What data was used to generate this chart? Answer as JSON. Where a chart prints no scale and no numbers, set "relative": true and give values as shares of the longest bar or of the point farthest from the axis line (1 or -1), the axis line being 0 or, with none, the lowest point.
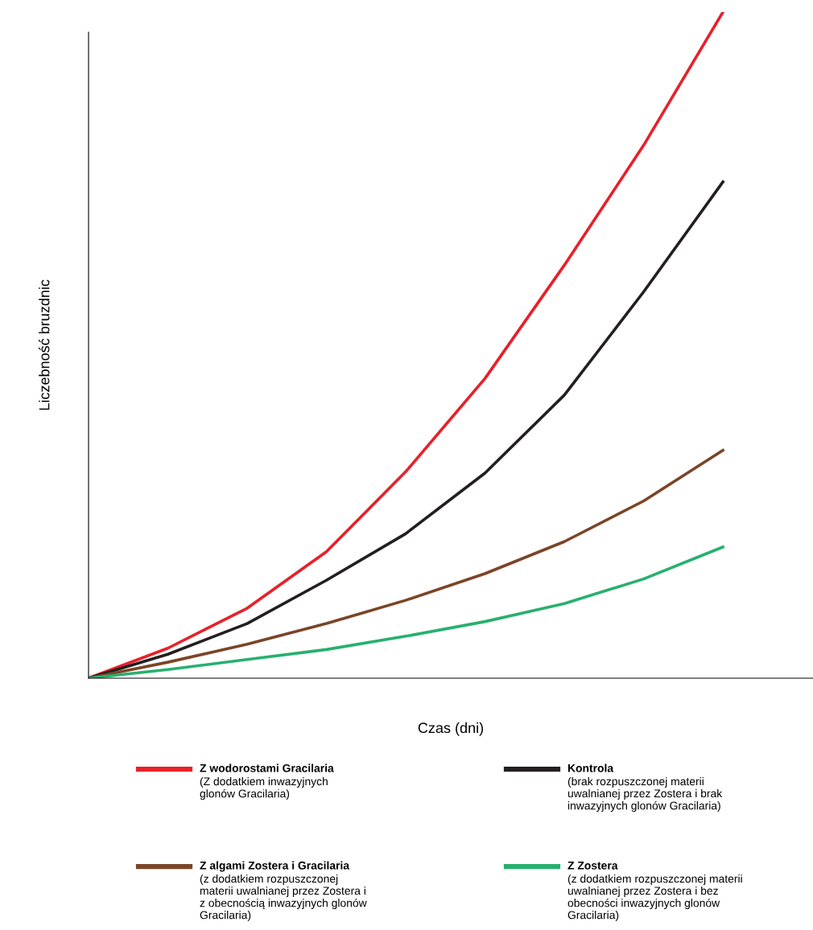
{
  "chart_data": {
    "type": "line",
    "relative": true,
    "xlabel": "Czas (dni)",
    "ylabel": "Liczebność bruzdnic",
    "categories": [
      null,
      null,
      null,
      null,
      null,
      null,
      null,
      null,
      null
    ],
    "series": [
      {
        "name": "Z wodorostami Gracilaria",
        "color": "#e8202a",
        "values": [
          0,
          0.045,
          0.105,
          0.19,
          0.31,
          0.45,
          0.62,
          0.8,
          1
        ]
      },
      {
        "name": "Kontrola",
        "color": "#231f20",
        "values": [
          0,
          0.036,
          0.082,
          0.147,
          0.217,
          0.308,
          0.425,
          0.58,
          0.745
        ]
      },
      {
        "name": "Z algami Zostera i Gracilaria",
        "color": "#7b4527",
        "values": [
          0,
          0.024,
          0.051,
          0.082,
          0.117,
          0.157,
          0.205,
          0.266,
          0.342
        ]
      },
      {
        "name": "Z Zostera",
        "color": "#27b06e",
        "values": [
          0,
          0.013,
          0.028,
          0.043,
          0.063,
          0.085,
          0.112,
          0.149,
          0.197
        ]
      }
    ],
    "annotations": [
      "(Z dodatkiem inwazyjnych\nglonów Gracilaria)",
      "(brak rozpuszczonej materii\nuwalnianej przez Zostera i brak\ninwazyjnych glonów Gracilaria)",
      "(z dodatkiem rozpuszczonej\nmaterii uwalnianej przez Zostera i\nz obecnością inwazyjnych glonów\nGracilaria)",
      "(z dodatkiem rozpuszczonej materii\nuwalnianej przez Zostera i bez\nobecności inwazyjnych glonów\nGracilaria)"
    ],
    "legend": "bottom",
    "grid": false,
    "marker": "none",
    "line_style": "solid"
  }
}
